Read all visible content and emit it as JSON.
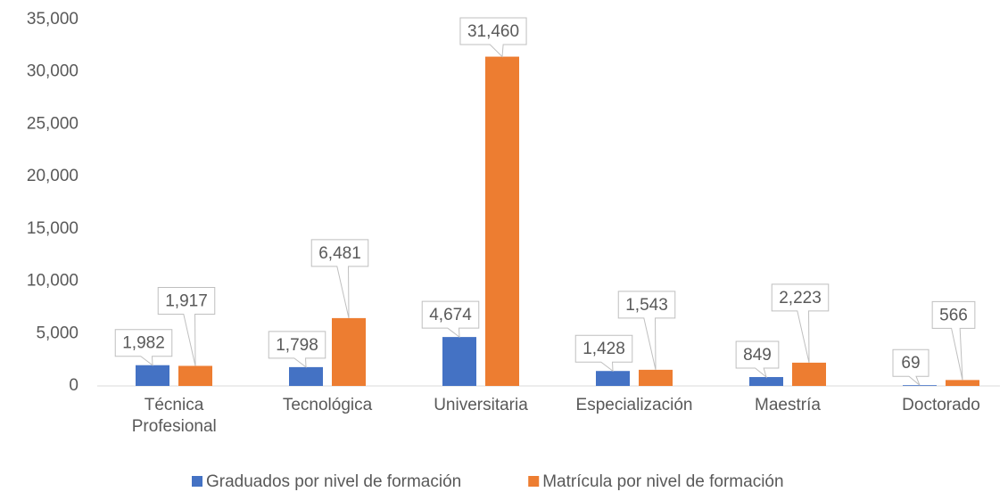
{
  "chart_data": {
    "type": "bar",
    "categories": [
      "Técnica Profesional",
      "Tecnológica",
      "Universitaria",
      "Especialización",
      "Maestría",
      "Doctorado"
    ],
    "series": [
      {
        "name": "Graduados por nivel de formación",
        "color": "#4472c4",
        "values": [
          1982,
          1798,
          4674,
          1428,
          849,
          69
        ],
        "value_labels": [
          "1,982",
          "1,798",
          "4,674",
          "1,428",
          "849",
          "69"
        ]
      },
      {
        "name": "Matrícula por nivel de formación",
        "color": "#ed7d31",
        "values": [
          1917,
          6481,
          31460,
          1543,
          2223,
          566
        ],
        "value_labels": [
          "1,917",
          "6,481",
          "31,460",
          "1,543",
          "2,223",
          "566"
        ]
      }
    ],
    "ylim": [
      0,
      35000
    ],
    "yticks": [
      0,
      {
        "value": 5000,
        "label": "5,000"
      },
      {
        "value": 10000,
        "label": "10,000"
      },
      {
        "value": 15000,
        "label": "15,000"
      },
      {
        "value": 20000,
        "label": "20,000"
      },
      {
        "value": 25000,
        "label": "25,000"
      },
      {
        "value": 30000,
        "label": "30,000"
      },
      {
        "value": 35000,
        "label": "35,000"
      }
    ],
    "grid": false,
    "legend": "bottom"
  }
}
